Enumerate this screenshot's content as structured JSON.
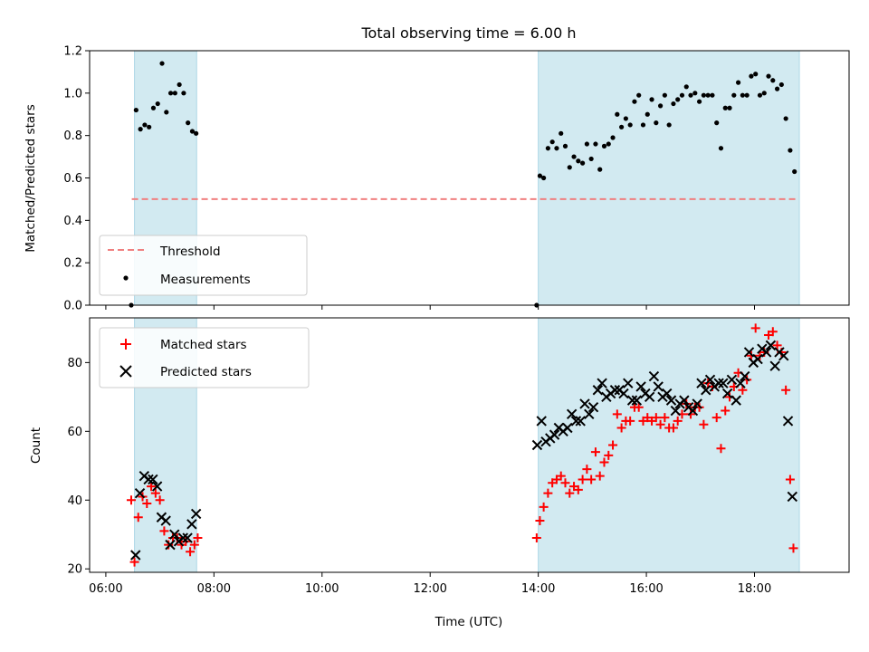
{
  "chart_data": [
    {
      "type": "scatter",
      "title": "Total observing time = 6.00 h",
      "ylabel": "Matched/Predicted stars",
      "xlabel": "",
      "xlim": [
        5.7,
        19.75
      ],
      "ylim": [
        0,
        1.2
      ],
      "x_ticks": [
        6,
        8,
        10,
        12,
        14,
        16,
        18
      ],
      "y_ticks": [
        0.0,
        0.2,
        0.4,
        0.6,
        0.8,
        1.0,
        1.2
      ],
      "y_tick_labels": [
        "0.0",
        "0.2",
        "0.4",
        "0.6",
        "0.8",
        "1.0",
        "1.2"
      ],
      "grid": false,
      "legend_position": "lower-left",
      "observing_windows": [
        [
          6.53,
          7.68
        ],
        [
          14.0,
          18.83
        ]
      ],
      "window_color": "#add8e6",
      "threshold": {
        "name": "Threshold",
        "y": 0.5,
        "x_range": [
          6.48,
          18.8
        ],
        "color": "#f08080"
      },
      "series": [
        {
          "name": "Measurements",
          "color": "#000000",
          "marker": "dot",
          "points": [
            [
              6.47,
              0.0
            ],
            [
              6.56,
              0.92
            ],
            [
              6.64,
              0.83
            ],
            [
              6.72,
              0.85
            ],
            [
              6.8,
              0.84
            ],
            [
              6.88,
              0.93
            ],
            [
              6.96,
              0.95
            ],
            [
              7.04,
              1.14
            ],
            [
              7.12,
              0.91
            ],
            [
              7.2,
              1.0
            ],
            [
              7.28,
              1.0
            ],
            [
              7.36,
              1.04
            ],
            [
              7.44,
              1.0
            ],
            [
              7.52,
              0.86
            ],
            [
              7.6,
              0.82
            ],
            [
              7.67,
              0.81
            ],
            [
              13.97,
              0.0
            ],
            [
              14.03,
              0.61
            ],
            [
              14.1,
              0.6
            ],
            [
              14.18,
              0.74
            ],
            [
              14.26,
              0.77
            ],
            [
              14.34,
              0.74
            ],
            [
              14.42,
              0.81
            ],
            [
              14.5,
              0.75
            ],
            [
              14.58,
              0.65
            ],
            [
              14.66,
              0.7
            ],
            [
              14.74,
              0.68
            ],
            [
              14.82,
              0.67
            ],
            [
              14.9,
              0.76
            ],
            [
              14.98,
              0.69
            ],
            [
              15.06,
              0.76
            ],
            [
              15.14,
              0.64
            ],
            [
              15.22,
              0.75
            ],
            [
              15.3,
              0.76
            ],
            [
              15.38,
              0.79
            ],
            [
              15.46,
              0.9
            ],
            [
              15.54,
              0.84
            ],
            [
              15.62,
              0.88
            ],
            [
              15.7,
              0.85
            ],
            [
              15.78,
              0.96
            ],
            [
              15.86,
              0.99
            ],
            [
              15.94,
              0.85
            ],
            [
              16.02,
              0.9
            ],
            [
              16.1,
              0.97
            ],
            [
              16.18,
              0.86
            ],
            [
              16.26,
              0.94
            ],
            [
              16.34,
              0.99
            ],
            [
              16.42,
              0.85
            ],
            [
              16.5,
              0.95
            ],
            [
              16.58,
              0.97
            ],
            [
              16.66,
              0.99
            ],
            [
              16.74,
              1.03
            ],
            [
              16.82,
              0.99
            ],
            [
              16.9,
              1.0
            ],
            [
              16.98,
              0.96
            ],
            [
              17.06,
              0.99
            ],
            [
              17.14,
              0.99
            ],
            [
              17.22,
              0.99
            ],
            [
              17.3,
              0.86
            ],
            [
              17.38,
              0.74
            ],
            [
              17.46,
              0.93
            ],
            [
              17.54,
              0.93
            ],
            [
              17.62,
              0.99
            ],
            [
              17.7,
              1.05
            ],
            [
              17.78,
              0.99
            ],
            [
              17.86,
              0.99
            ],
            [
              17.94,
              1.08
            ],
            [
              18.02,
              1.09
            ],
            [
              18.1,
              0.99
            ],
            [
              18.18,
              1.0
            ],
            [
              18.26,
              1.08
            ],
            [
              18.34,
              1.06
            ],
            [
              18.42,
              1.02
            ],
            [
              18.5,
              1.04
            ],
            [
              18.58,
              0.88
            ],
            [
              18.66,
              0.73
            ],
            [
              18.74,
              0.63
            ]
          ]
        }
      ]
    },
    {
      "type": "scatter",
      "title": "",
      "ylabel": "Count",
      "xlabel": "Time (UTC)",
      "xlim": [
        5.7,
        19.75
      ],
      "ylim": [
        19,
        93
      ],
      "x_ticks": [
        6,
        8,
        10,
        12,
        14,
        16,
        18
      ],
      "x_tick_labels": [
        "06:00",
        "08:00",
        "10:00",
        "12:00",
        "14:00",
        "16:00",
        "18:00"
      ],
      "y_ticks": [
        20,
        40,
        60,
        80
      ],
      "y_tick_labels": [
        "20",
        "40",
        "60",
        "80"
      ],
      "grid": false,
      "legend_position": "upper-left",
      "observing_windows": [
        [
          6.53,
          7.68
        ],
        [
          14.0,
          18.83
        ]
      ],
      "window_color": "#add8e6",
      "series": [
        {
          "name": "Matched stars",
          "color": "#ff0000",
          "marker": "plus",
          "points": [
            [
              6.47,
              40
            ],
            [
              6.53,
              22
            ],
            [
              6.6,
              35
            ],
            [
              6.68,
              41
            ],
            [
              6.76,
              39
            ],
            [
              6.84,
              44
            ],
            [
              6.92,
              42
            ],
            [
              7.0,
              40
            ],
            [
              7.08,
              31
            ],
            [
              7.16,
              27
            ],
            [
              7.24,
              29
            ],
            [
              7.32,
              29
            ],
            [
              7.4,
              27
            ],
            [
              7.48,
              28
            ],
            [
              7.56,
              25
            ],
            [
              7.64,
              27
            ],
            [
              7.7,
              29
            ],
            [
              13.97,
              29
            ],
            [
              14.03,
              34
            ],
            [
              14.1,
              38
            ],
            [
              14.18,
              42
            ],
            [
              14.26,
              45
            ],
            [
              14.34,
              46
            ],
            [
              14.42,
              47
            ],
            [
              14.5,
              45
            ],
            [
              14.58,
              42
            ],
            [
              14.66,
              44
            ],
            [
              14.74,
              43
            ],
            [
              14.82,
              46
            ],
            [
              14.9,
              49
            ],
            [
              14.98,
              46
            ],
            [
              15.06,
              54
            ],
            [
              15.14,
              47
            ],
            [
              15.22,
              51
            ],
            [
              15.3,
              53
            ],
            [
              15.38,
              56
            ],
            [
              15.46,
              65
            ],
            [
              15.54,
              61
            ],
            [
              15.62,
              63
            ],
            [
              15.7,
              63
            ],
            [
              15.78,
              67
            ],
            [
              15.86,
              67
            ],
            [
              15.94,
              63
            ],
            [
              16.02,
              64
            ],
            [
              16.1,
              63
            ],
            [
              16.18,
              64
            ],
            [
              16.26,
              62
            ],
            [
              16.34,
              64
            ],
            [
              16.42,
              61
            ],
            [
              16.5,
              61
            ],
            [
              16.58,
              63
            ],
            [
              16.66,
              65
            ],
            [
              16.74,
              68
            ],
            [
              16.82,
              65
            ],
            [
              16.9,
              67
            ],
            [
              16.98,
              67
            ],
            [
              17.06,
              62
            ],
            [
              17.14,
              74
            ],
            [
              17.22,
              73
            ],
            [
              17.3,
              64
            ],
            [
              17.38,
              55
            ],
            [
              17.46,
              66
            ],
            [
              17.54,
              70
            ],
            [
              17.62,
              73
            ],
            [
              17.7,
              77
            ],
            [
              17.78,
              72
            ],
            [
              17.86,
              75
            ],
            [
              17.94,
              82
            ],
            [
              18.02,
              90
            ],
            [
              18.1,
              82
            ],
            [
              18.18,
              83
            ],
            [
              18.26,
              88
            ],
            [
              18.34,
              89
            ],
            [
              18.42,
              85
            ],
            [
              18.5,
              83
            ],
            [
              18.58,
              72
            ],
            [
              18.66,
              46
            ],
            [
              18.72,
              26
            ]
          ]
        },
        {
          "name": "Predicted stars",
          "color": "#000000",
          "marker": "x",
          "points": [
            [
              6.55,
              24
            ],
            [
              6.63,
              42
            ],
            [
              6.71,
              47
            ],
            [
              6.79,
              46
            ],
            [
              6.87,
              46
            ],
            [
              6.95,
              44
            ],
            [
              7.03,
              35
            ],
            [
              7.11,
              34
            ],
            [
              7.19,
              27
            ],
            [
              7.27,
              30
            ],
            [
              7.35,
              28
            ],
            [
              7.43,
              29
            ],
            [
              7.51,
              29
            ],
            [
              7.59,
              33
            ],
            [
              7.67,
              36
            ],
            [
              13.98,
              56
            ],
            [
              14.06,
              63
            ],
            [
              14.14,
              57
            ],
            [
              14.22,
              58
            ],
            [
              14.3,
              59
            ],
            [
              14.38,
              61
            ],
            [
              14.46,
              60
            ],
            [
              14.54,
              61
            ],
            [
              14.62,
              65
            ],
            [
              14.7,
              63
            ],
            [
              14.78,
              63
            ],
            [
              14.86,
              68
            ],
            [
              14.94,
              65
            ],
            [
              15.02,
              67
            ],
            [
              15.1,
              72
            ],
            [
              15.18,
              74
            ],
            [
              15.26,
              70
            ],
            [
              15.34,
              71
            ],
            [
              15.42,
              72
            ],
            [
              15.5,
              72
            ],
            [
              15.58,
              71
            ],
            [
              15.66,
              74
            ],
            [
              15.74,
              69
            ],
            [
              15.82,
              69
            ],
            [
              15.9,
              73
            ],
            [
              15.98,
              71
            ],
            [
              16.06,
              70
            ],
            [
              16.14,
              76
            ],
            [
              16.22,
              73
            ],
            [
              16.3,
              70
            ],
            [
              16.38,
              71
            ],
            [
              16.46,
              69
            ],
            [
              16.54,
              66
            ],
            [
              16.62,
              68
            ],
            [
              16.7,
              69
            ],
            [
              16.78,
              67
            ],
            [
              16.86,
              66
            ],
            [
              16.94,
              68
            ],
            [
              17.02,
              74
            ],
            [
              17.1,
              72
            ],
            [
              17.18,
              75
            ],
            [
              17.26,
              73
            ],
            [
              17.34,
              74
            ],
            [
              17.42,
              74
            ],
            [
              17.5,
              71
            ],
            [
              17.58,
              75
            ],
            [
              17.66,
              69
            ],
            [
              17.74,
              74
            ],
            [
              17.82,
              76
            ],
            [
              17.9,
              83
            ],
            [
              17.98,
              80
            ],
            [
              18.06,
              81
            ],
            [
              18.14,
              84
            ],
            [
              18.22,
              83
            ],
            [
              18.3,
              85
            ],
            [
              18.38,
              79
            ],
            [
              18.46,
              83
            ],
            [
              18.54,
              82
            ],
            [
              18.62,
              63
            ],
            [
              18.7,
              41
            ]
          ]
        }
      ]
    }
  ]
}
